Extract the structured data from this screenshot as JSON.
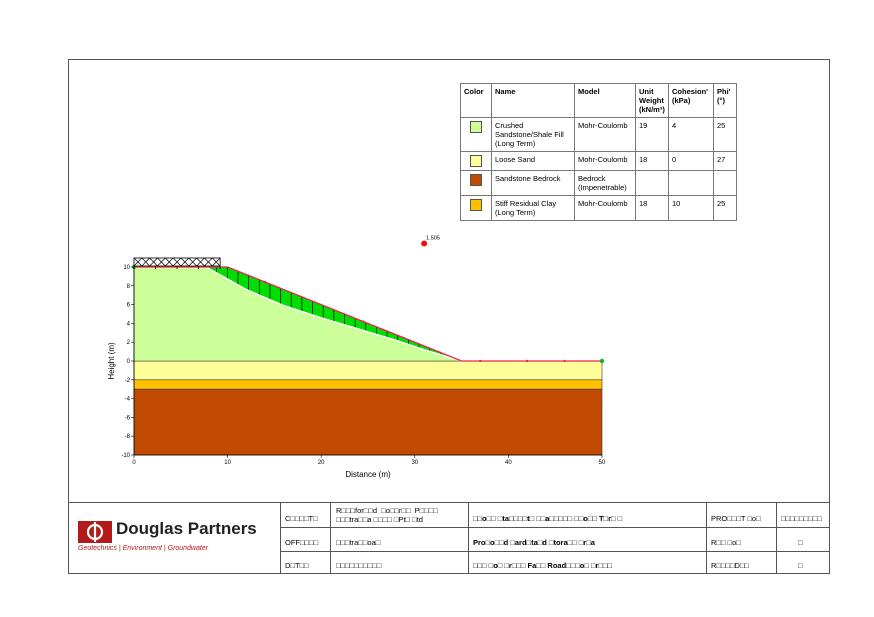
{
  "legend": {
    "headers": [
      "Color",
      "Name",
      "Model",
      "Unit Weight (kN/m³)",
      "Cohesion' (kPa)",
      "Phi' (°)"
    ],
    "rows": [
      {
        "color": "#ccff99",
        "name": "Crushed Sandstone/Shale Fill (Long Term)",
        "model": "Mohr-Coulomb",
        "unit_weight": "19",
        "cohesion": "4",
        "phi": "25"
      },
      {
        "color": "#ffff99",
        "name": "Loose Sand",
        "model": "Mohr-Coulomb",
        "unit_weight": "18",
        "cohesion": "0",
        "phi": "27"
      },
      {
        "color": "#c04a00",
        "name": "Sandstone Bedrock",
        "model": "Bedrock (Impenetrable)",
        "unit_weight": "",
        "cohesion": "",
        "phi": ""
      },
      {
        "color": "#ffc000",
        "name": "Stiff Residual Clay (Long Term)",
        "model": "Mohr-Coulomb",
        "unit_weight": "18",
        "cohesion": "10",
        "phi": "25"
      }
    ]
  },
  "chart_data": {
    "type": "diagram",
    "xlabel": "Distance (m)",
    "ylabel": "Height (m)",
    "xlim": [
      0,
      50
    ],
    "ylim": [
      -10,
      10
    ],
    "x_ticks": [
      0,
      10,
      20,
      30,
      40,
      50
    ],
    "y_ticks": [
      10,
      8,
      6,
      4,
      2,
      0,
      -2,
      -4,
      -6,
      -8,
      -10
    ],
    "factor_of_safety": "1.505",
    "slip_center": [
      31,
      12.5
    ],
    "ground_surface": [
      [
        0,
        10
      ],
      [
        10,
        10
      ],
      [
        35,
        0
      ],
      [
        50,
        0
      ]
    ],
    "slip_surface": [
      [
        7.7,
        10
      ],
      [
        9.5,
        9
      ],
      [
        12,
        7.6
      ],
      [
        16,
        5.9
      ],
      [
        20,
        4.6
      ],
      [
        24,
        3.4
      ],
      [
        28,
        2.2
      ],
      [
        31,
        1.2
      ],
      [
        35,
        0
      ]
    ],
    "layers": [
      {
        "name": "Loose Sand",
        "top": 0,
        "bottom": -2,
        "color": "#ffff99"
      },
      {
        "name": "Stiff Residual Clay (Long Term)",
        "top": -2,
        "bottom": -3,
        "color": "#ffc000"
      },
      {
        "name": "Sandstone Bedrock",
        "top": -3,
        "bottom": -10,
        "color": "#c04a00"
      }
    ],
    "fill_color": "#ccff99",
    "slip_mass_color": "#00dd00",
    "surcharge": {
      "x_start": 0,
      "x_end": 9.2
    }
  },
  "titleblock": {
    "logo_name": "Douglas Partners",
    "logo_tagline": "Geotechnics  |  Environment  |  Groundwater",
    "client_label": "C□□□□T□",
    "client_value": "R□□□for□□d  □o□□r□□  P□□□□\n□□□tra□□a □□□□ □Pt□ □td",
    "office_label": "OFF□□□□",
    "office_value": "□□□tra□□oa□",
    "date_label": "D□T□□",
    "date_value": "□□□□□□□□□□",
    "title_line1": "□□o□□ □ta□□□□t□ □□a□□□□□ □□o□□ T□r□ □",
    "title_line2": "Pro□o□□d □ard□ta□d □tora□□ □r□a",
    "title_line3": "□□□ □o□ □r□□□ Fa□□ Road□□□o□ □r□□□",
    "project_label": "PRO□□□T □o□",
    "project_value": "□□□□□□□□□",
    "ref_label": "R□□ □o□",
    "ref_value": "□",
    "rev_label": "R□□□□D□□",
    "rev_value": "□"
  }
}
